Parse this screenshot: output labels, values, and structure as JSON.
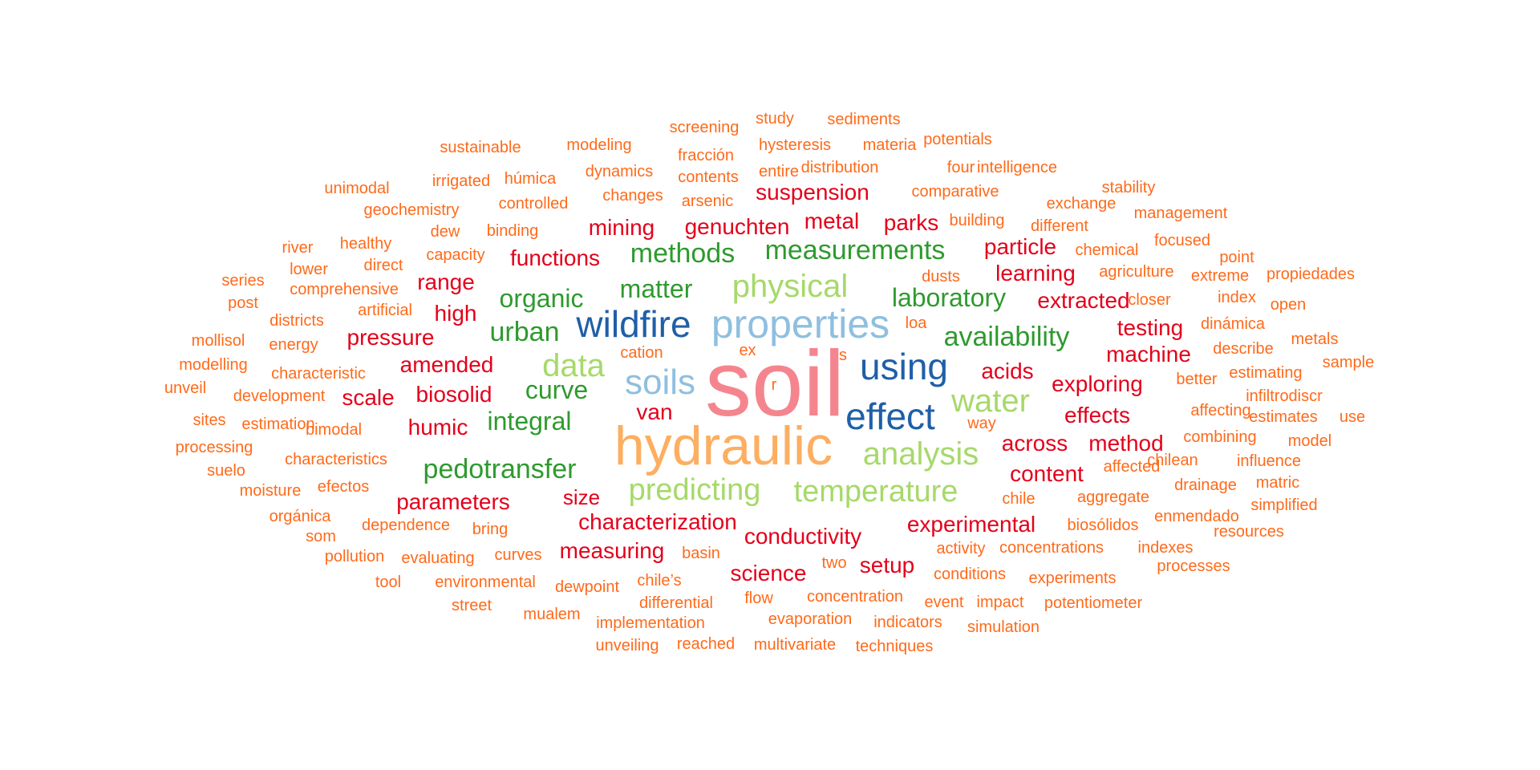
{
  "palette": {
    "pink": "#f4858e",
    "orange_light": "#fdae61",
    "blue_light": "#8fbfdf",
    "blue_dark": "#1f5fa8",
    "green_light": "#a6d96a",
    "green_dark": "#2e9a2e",
    "red": "#e3001b",
    "orange": "#ff6a1a"
  },
  "words": [
    {
      "text": "soil",
      "color": "pink"
    },
    {
      "text": "hydraulic",
      "color": "orange_light"
    },
    {
      "text": "properties",
      "color": "blue_light"
    },
    {
      "text": "wildfire",
      "color": "blue_dark"
    },
    {
      "text": "soils",
      "color": "blue_light"
    },
    {
      "text": "using",
      "color": "blue_dark"
    },
    {
      "text": "effect",
      "color": "blue_dark"
    },
    {
      "text": "data",
      "color": "green_light"
    },
    {
      "text": "water",
      "color": "green_light"
    },
    {
      "text": "analysis",
      "color": "green_light"
    },
    {
      "text": "predicting",
      "color": "green_light"
    },
    {
      "text": "temperature",
      "color": "green_light"
    },
    {
      "text": "physical",
      "color": "green_light"
    },
    {
      "text": "measurements",
      "color": "green_dark"
    },
    {
      "text": "methods",
      "color": "green_dark"
    },
    {
      "text": "matter",
      "color": "green_dark"
    },
    {
      "text": "organic",
      "color": "green_dark"
    },
    {
      "text": "laboratory",
      "color": "green_dark"
    },
    {
      "text": "availability",
      "color": "green_dark"
    },
    {
      "text": "urban",
      "color": "green_dark"
    },
    {
      "text": "curve",
      "color": "green_dark"
    },
    {
      "text": "integral",
      "color": "green_dark"
    },
    {
      "text": "pedotransfer",
      "color": "green_dark"
    },
    {
      "text": "suspension",
      "color": "red"
    },
    {
      "text": "mining",
      "color": "red"
    },
    {
      "text": "genuchten",
      "color": "red"
    },
    {
      "text": "metal",
      "color": "red"
    },
    {
      "text": "parks",
      "color": "red"
    },
    {
      "text": "functions",
      "color": "red"
    },
    {
      "text": "particle",
      "color": "red"
    },
    {
      "text": "learning",
      "color": "red"
    },
    {
      "text": "range",
      "color": "red"
    },
    {
      "text": "extracted",
      "color": "red"
    },
    {
      "text": "high",
      "color": "red"
    },
    {
      "text": "testing",
      "color": "red"
    },
    {
      "text": "pressure",
      "color": "red"
    },
    {
      "text": "machine",
      "color": "red"
    },
    {
      "text": "amended",
      "color": "red"
    },
    {
      "text": "acids",
      "color": "red"
    },
    {
      "text": "exploring",
      "color": "red"
    },
    {
      "text": "scale",
      "color": "red"
    },
    {
      "text": "biosolid",
      "color": "red"
    },
    {
      "text": "effects",
      "color": "red"
    },
    {
      "text": "van",
      "color": "red"
    },
    {
      "text": "humic",
      "color": "red"
    },
    {
      "text": "across",
      "color": "red"
    },
    {
      "text": "method",
      "color": "red"
    },
    {
      "text": "content",
      "color": "red"
    },
    {
      "text": "parameters",
      "color": "red"
    },
    {
      "text": "size",
      "color": "red"
    },
    {
      "text": "characterization",
      "color": "red"
    },
    {
      "text": "experimental",
      "color": "red"
    },
    {
      "text": "conductivity",
      "color": "red"
    },
    {
      "text": "measuring",
      "color": "red"
    },
    {
      "text": "science",
      "color": "red"
    },
    {
      "text": "setup",
      "color": "red"
    },
    {
      "text": "study",
      "color": "orange"
    },
    {
      "text": "sediments",
      "color": "orange"
    },
    {
      "text": "screening",
      "color": "orange"
    },
    {
      "text": "potentials",
      "color": "orange"
    },
    {
      "text": "sustainable",
      "color": "orange"
    },
    {
      "text": "modeling",
      "color": "orange"
    },
    {
      "text": "hysteresis",
      "color": "orange"
    },
    {
      "text": "materia",
      "color": "orange"
    },
    {
      "text": "fracción",
      "color": "orange"
    },
    {
      "text": "dynamics",
      "color": "orange"
    },
    {
      "text": "distribution",
      "color": "orange"
    },
    {
      "text": "four",
      "color": "orange"
    },
    {
      "text": "intelligence",
      "color": "orange"
    },
    {
      "text": "irrigated",
      "color": "orange"
    },
    {
      "text": "húmica",
      "color": "orange"
    },
    {
      "text": "contents",
      "color": "orange"
    },
    {
      "text": "entire",
      "color": "orange"
    },
    {
      "text": "unimodal",
      "color": "orange"
    },
    {
      "text": "changes",
      "color": "orange"
    },
    {
      "text": "comparative",
      "color": "orange"
    },
    {
      "text": "stability",
      "color": "orange"
    },
    {
      "text": "arsenic",
      "color": "orange"
    },
    {
      "text": "controlled",
      "color": "orange"
    },
    {
      "text": "exchange",
      "color": "orange"
    },
    {
      "text": "geochemistry",
      "color": "orange"
    },
    {
      "text": "management",
      "color": "orange"
    },
    {
      "text": "building",
      "color": "orange"
    },
    {
      "text": "binding",
      "color": "orange"
    },
    {
      "text": "different",
      "color": "orange"
    },
    {
      "text": "dew",
      "color": "orange"
    },
    {
      "text": "healthy",
      "color": "orange"
    },
    {
      "text": "focused",
      "color": "orange"
    },
    {
      "text": "river",
      "color": "orange"
    },
    {
      "text": "capacity",
      "color": "orange"
    },
    {
      "text": "chemical",
      "color": "orange"
    },
    {
      "text": "point",
      "color": "orange"
    },
    {
      "text": "direct",
      "color": "orange"
    },
    {
      "text": "lower",
      "color": "orange"
    },
    {
      "text": "agriculture",
      "color": "orange"
    },
    {
      "text": "extreme",
      "color": "orange"
    },
    {
      "text": "propiedades",
      "color": "orange"
    },
    {
      "text": "series",
      "color": "orange"
    },
    {
      "text": "dusts",
      "color": "orange"
    },
    {
      "text": "comprehensive",
      "color": "orange"
    },
    {
      "text": "post",
      "color": "orange"
    },
    {
      "text": "closer",
      "color": "orange"
    },
    {
      "text": "index",
      "color": "orange"
    },
    {
      "text": "open",
      "color": "orange"
    },
    {
      "text": "artificial",
      "color": "orange"
    },
    {
      "text": "districts",
      "color": "orange"
    },
    {
      "text": "loa",
      "color": "orange"
    },
    {
      "text": "dinámica",
      "color": "orange"
    },
    {
      "text": "mollisol",
      "color": "orange"
    },
    {
      "text": "energy",
      "color": "orange"
    },
    {
      "text": "metals",
      "color": "orange"
    },
    {
      "text": "cation",
      "color": "orange"
    },
    {
      "text": "ex",
      "color": "orange"
    },
    {
      "text": "s",
      "color": "orange"
    },
    {
      "text": "describe",
      "color": "orange"
    },
    {
      "text": "modelling",
      "color": "orange"
    },
    {
      "text": "sample",
      "color": "orange"
    },
    {
      "text": "characteristic",
      "color": "orange"
    },
    {
      "text": "estimating",
      "color": "orange"
    },
    {
      "text": "unveil",
      "color": "orange"
    },
    {
      "text": "r",
      "color": "orange"
    },
    {
      "text": "better",
      "color": "orange"
    },
    {
      "text": "development",
      "color": "orange"
    },
    {
      "text": "infiltrodiscr",
      "color": "orange"
    },
    {
      "text": "affecting",
      "color": "orange"
    },
    {
      "text": "sites",
      "color": "orange"
    },
    {
      "text": "estimation",
      "color": "orange"
    },
    {
      "text": "estimates",
      "color": "orange"
    },
    {
      "text": "use",
      "color": "orange"
    },
    {
      "text": "way",
      "color": "orange"
    },
    {
      "text": "bimodal",
      "color": "orange"
    },
    {
      "text": "combining",
      "color": "orange"
    },
    {
      "text": "processing",
      "color": "orange"
    },
    {
      "text": "model",
      "color": "orange"
    },
    {
      "text": "chilean",
      "color": "orange"
    },
    {
      "text": "influence",
      "color": "orange"
    },
    {
      "text": "characteristics",
      "color": "orange"
    },
    {
      "text": "suelo",
      "color": "orange"
    },
    {
      "text": "affected",
      "color": "orange"
    },
    {
      "text": "drainage",
      "color": "orange"
    },
    {
      "text": "matric",
      "color": "orange"
    },
    {
      "text": "moisture",
      "color": "orange"
    },
    {
      "text": "efectos",
      "color": "orange"
    },
    {
      "text": "aggregate",
      "color": "orange"
    },
    {
      "text": "chile",
      "color": "orange"
    },
    {
      "text": "simplified",
      "color": "orange"
    },
    {
      "text": "orgánica",
      "color": "orange"
    },
    {
      "text": "enmendado",
      "color": "orange"
    },
    {
      "text": "dependence",
      "color": "orange"
    },
    {
      "text": "bring",
      "color": "orange"
    },
    {
      "text": "biosólidos",
      "color": "orange"
    },
    {
      "text": "som",
      "color": "orange"
    },
    {
      "text": "resources",
      "color": "orange"
    },
    {
      "text": "activity",
      "color": "orange"
    },
    {
      "text": "concentrations",
      "color": "orange"
    },
    {
      "text": "indexes",
      "color": "orange"
    },
    {
      "text": "basin",
      "color": "orange"
    },
    {
      "text": "curves",
      "color": "orange"
    },
    {
      "text": "pollution",
      "color": "orange"
    },
    {
      "text": "evaluating",
      "color": "orange"
    },
    {
      "text": "two",
      "color": "orange"
    },
    {
      "text": "processes",
      "color": "orange"
    },
    {
      "text": "conditions",
      "color": "orange"
    },
    {
      "text": "experiments",
      "color": "orange"
    },
    {
      "text": "environmental",
      "color": "orange"
    },
    {
      "text": "chile’s",
      "color": "orange"
    },
    {
      "text": "tool",
      "color": "orange"
    },
    {
      "text": "dewpoint",
      "color": "orange"
    },
    {
      "text": "concentration",
      "color": "orange"
    },
    {
      "text": "differential",
      "color": "orange"
    },
    {
      "text": "flow",
      "color": "orange"
    },
    {
      "text": "event",
      "color": "orange"
    },
    {
      "text": "impact",
      "color": "orange"
    },
    {
      "text": "potentiometer",
      "color": "orange"
    },
    {
      "text": "street",
      "color": "orange"
    },
    {
      "text": "mualem",
      "color": "orange"
    },
    {
      "text": "evaporation",
      "color": "orange"
    },
    {
      "text": "implementation",
      "color": "orange"
    },
    {
      "text": "indicators",
      "color": "orange"
    },
    {
      "text": "simulation",
      "color": "orange"
    },
    {
      "text": "unveiling",
      "color": "orange"
    },
    {
      "text": "reached",
      "color": "orange"
    },
    {
      "text": "multivariate",
      "color": "orange"
    },
    {
      "text": "techniques",
      "color": "orange"
    }
  ]
}
